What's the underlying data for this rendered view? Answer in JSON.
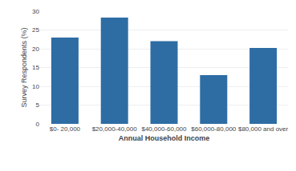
{
  "chart_data": {
    "type": "bar",
    "categories": [
      "$0- 20,000",
      "$20,000-40,000",
      "$40,000-60,000",
      "$60,000-80,000",
      "$80,000 and over"
    ],
    "values": [
      23,
      28.3,
      22,
      13,
      20.2
    ],
    "color": "#2E6DA4",
    "xlabel": "Annual Household Income",
    "ylabel": "Survey Respondents (%)",
    "ylim": [
      0,
      30
    ],
    "yticks": [
      0,
      5,
      10,
      15,
      20,
      25,
      30
    ],
    "grid": true
  }
}
